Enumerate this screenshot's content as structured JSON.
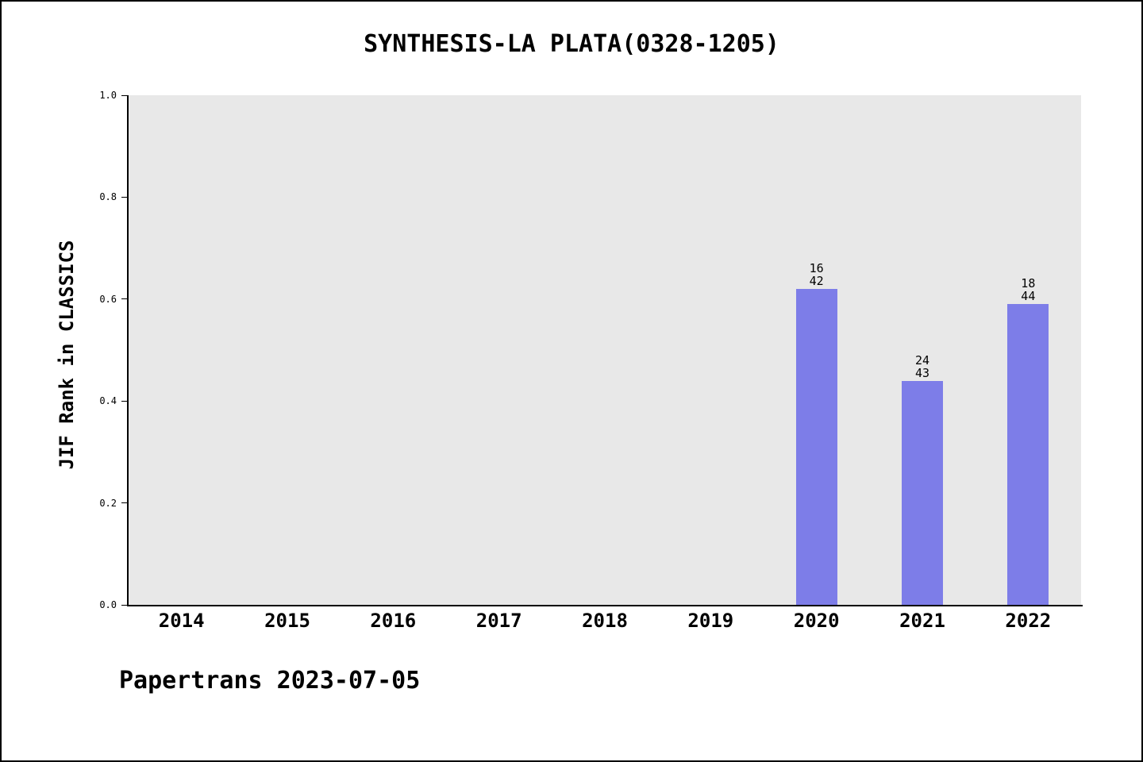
{
  "footer": "Papertrans 2023-07-05",
  "chart_data": {
    "type": "bar",
    "title": "SYNTHESIS-LA PLATA(0328-1205)",
    "xlabel": "",
    "ylabel": "JIF Rank in CLASSICS",
    "categories": [
      "2014",
      "2015",
      "2016",
      "2017",
      "2018",
      "2019",
      "2020",
      "2021",
      "2022"
    ],
    "values": [
      null,
      null,
      null,
      null,
      null,
      null,
      0.62,
      0.44,
      0.59
    ],
    "bar_labels": [
      null,
      null,
      null,
      null,
      null,
      null,
      [
        "16",
        "42"
      ],
      [
        "24",
        "43"
      ],
      [
        "18",
        "44"
      ]
    ],
    "ylim": [
      0.0,
      1.0
    ],
    "yticks": [
      "0.0",
      "0.2",
      "0.4",
      "0.6",
      "0.8",
      "1.0"
    ],
    "grid": false,
    "legend": false,
    "colors": {
      "bar": "#7d7de8",
      "plot_bg": "#e8e8e8",
      "axis": "#000000",
      "background": "#ffffff"
    }
  }
}
